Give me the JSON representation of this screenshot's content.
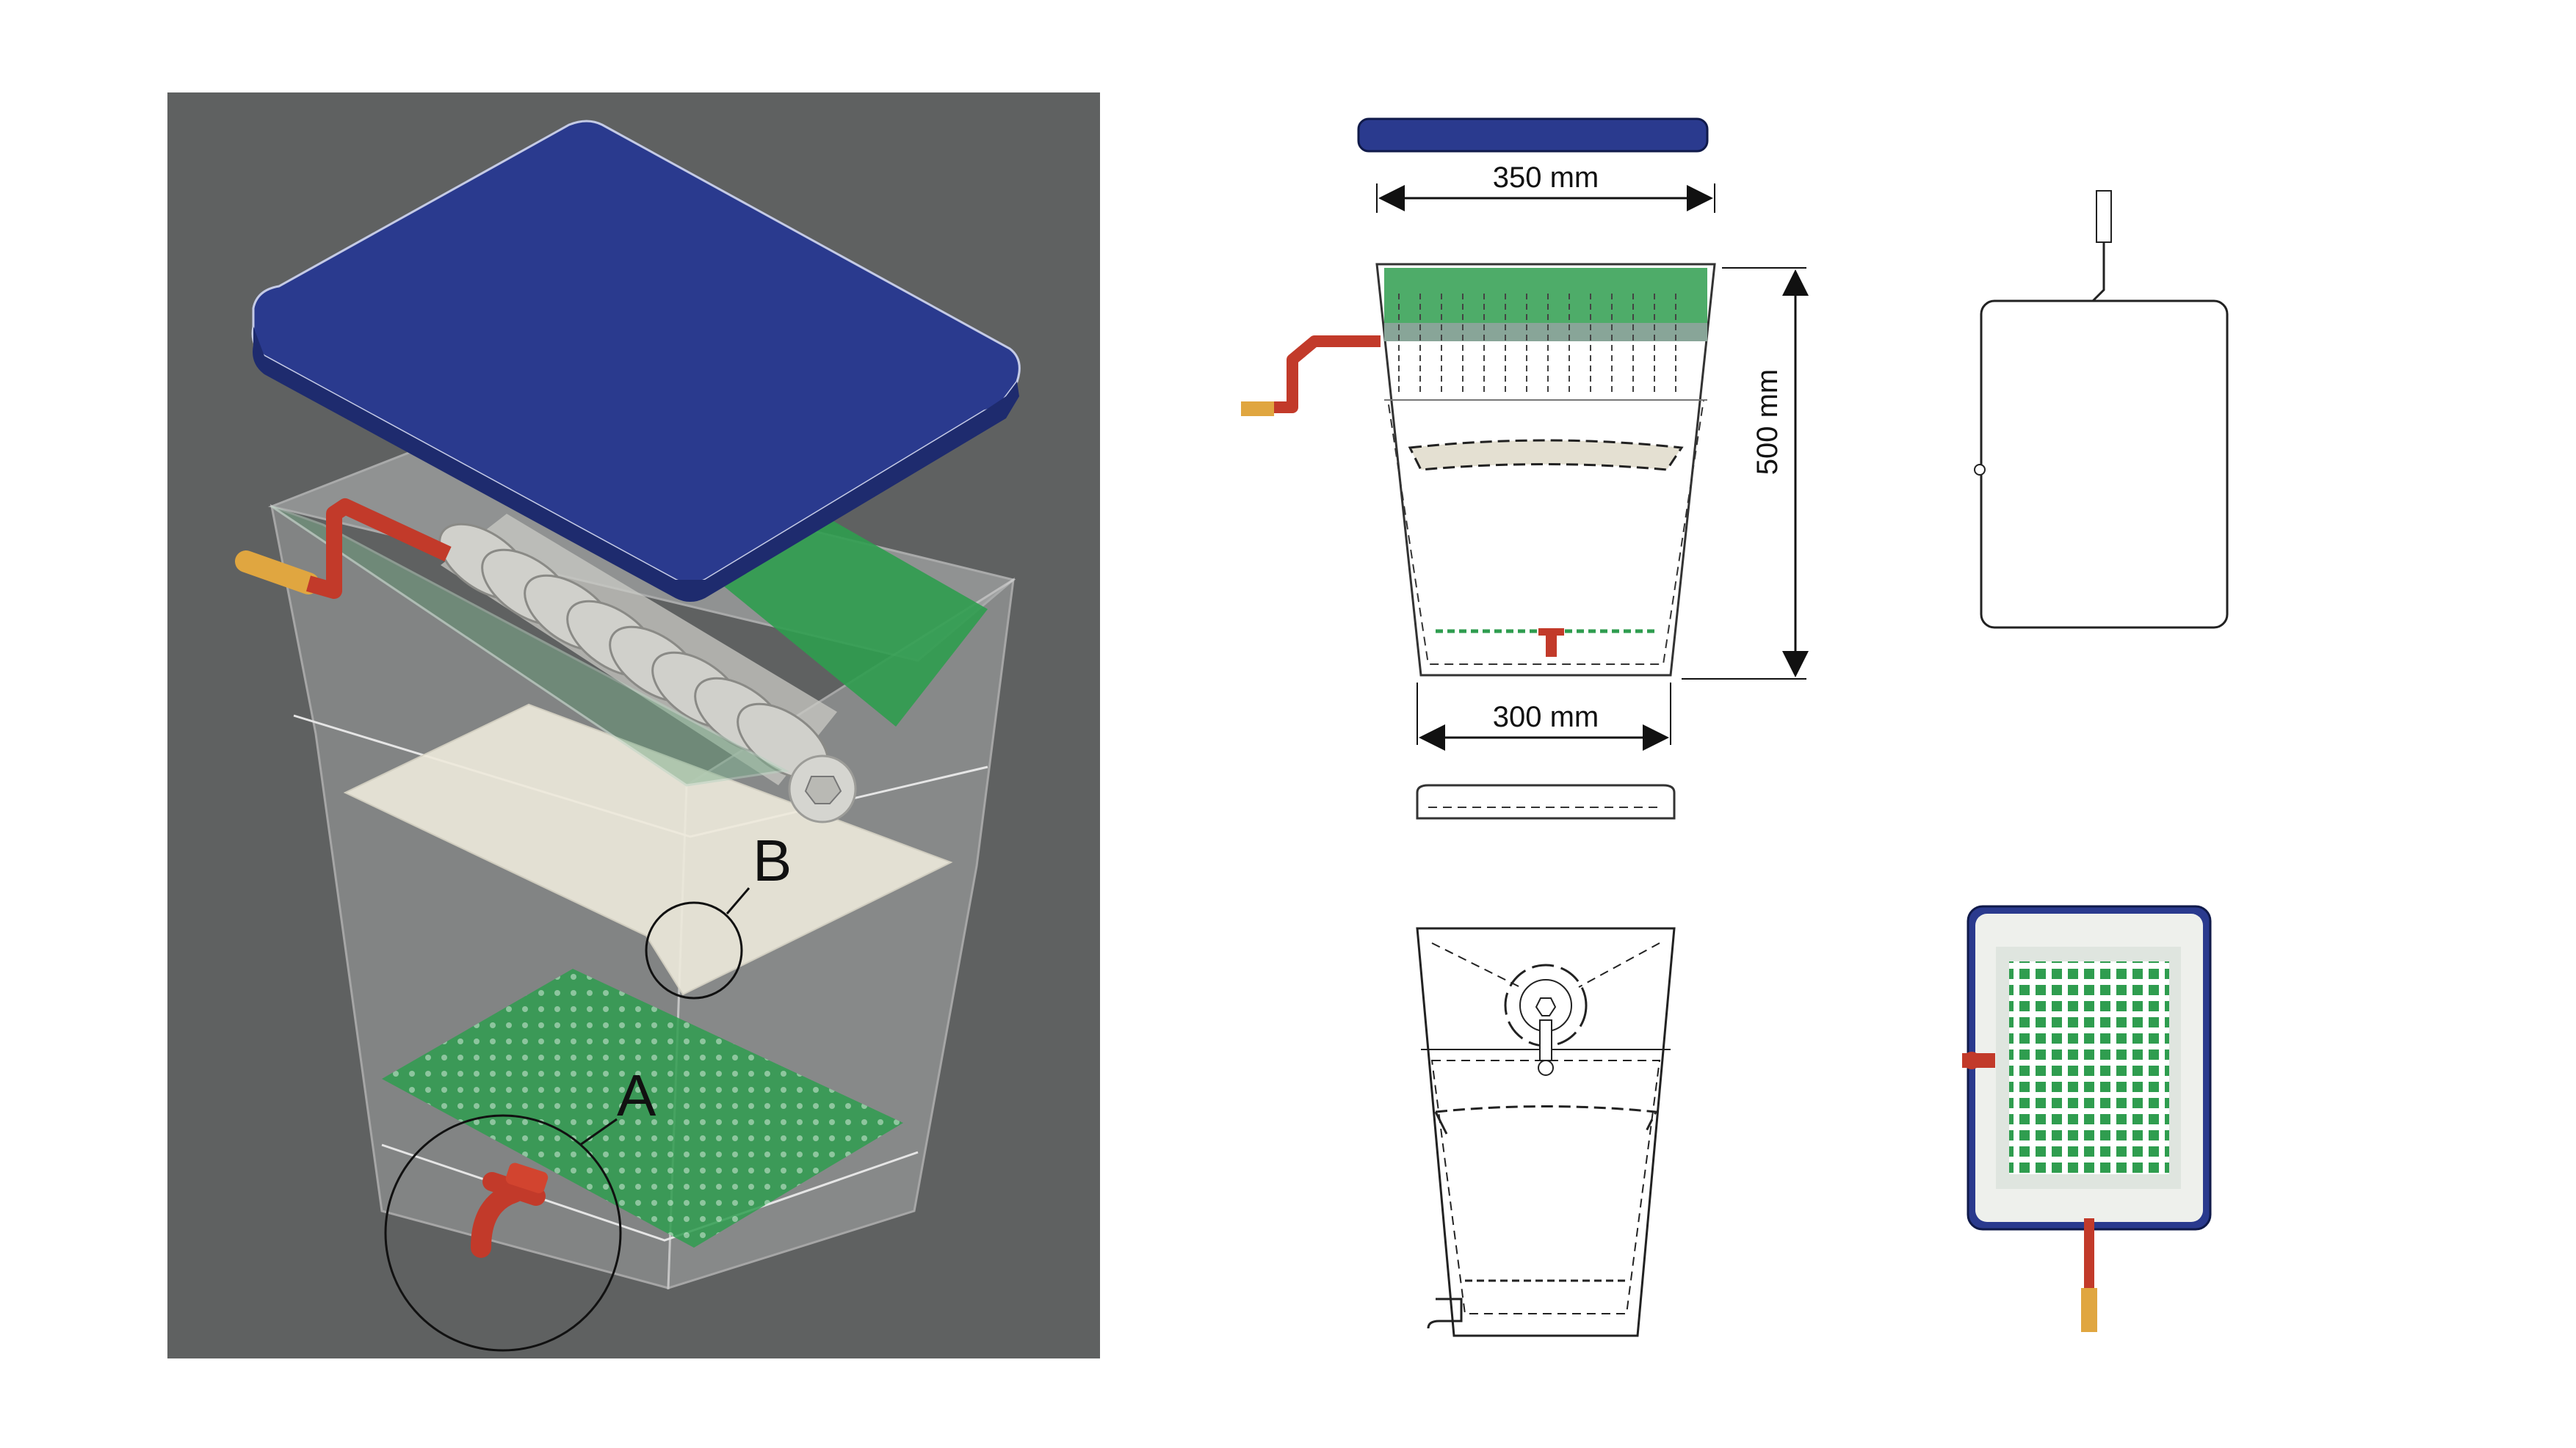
{
  "render_panel": {
    "callout_a": "A",
    "callout_b": "B"
  },
  "drawings": {
    "width_top": "350 mm",
    "width_bottom": "300 mm",
    "height": "500 mm"
  },
  "colors": {
    "background_render": "#5f6161",
    "lid": "#2a3a8e",
    "crank": "#c23a2a",
    "handle": "#e0a640",
    "filter_mesh": "#2f9d4f",
    "plate": "#eeeadc"
  },
  "icons": [
    "crank-handle",
    "spigot-tap",
    "perforated-plate",
    "roller-drum",
    "lid"
  ]
}
